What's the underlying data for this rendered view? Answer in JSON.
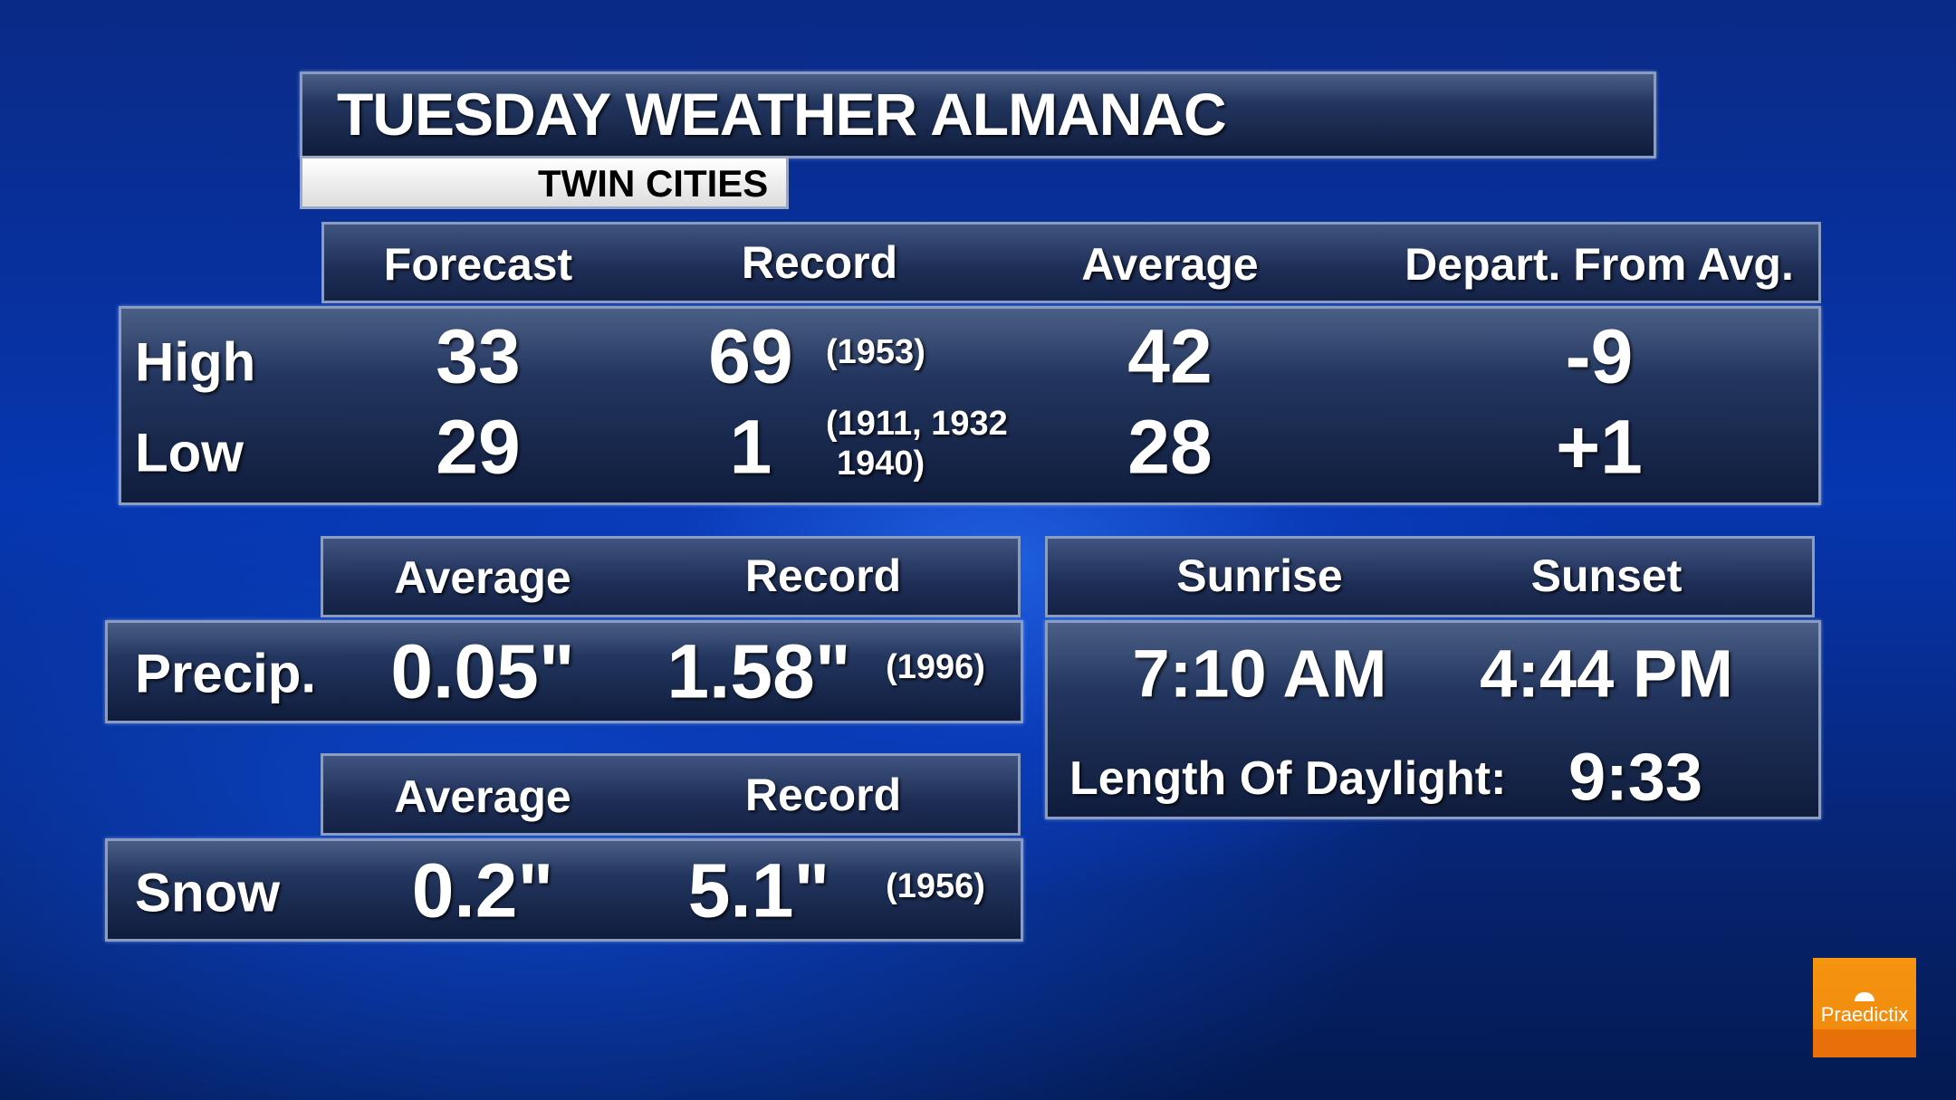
{
  "title": "TUESDAY WEATHER ALMANAC",
  "location": "TWIN CITIES",
  "temps": {
    "headers": [
      "Forecast",
      "Record",
      "Average",
      "Depart. From Avg."
    ],
    "rows": [
      {
        "label": "High",
        "forecast": "33",
        "record": "69",
        "record_year": "(1953)",
        "record_year2": "",
        "average": "42",
        "departure": "-9"
      },
      {
        "label": "Low",
        "forecast": "29",
        "record": "1",
        "record_year": "(1911, 1932",
        "record_year2": "1940)",
        "average": "28",
        "departure": "+1"
      }
    ]
  },
  "precip": {
    "headers": [
      "Average",
      "Record"
    ],
    "label": "Precip.",
    "average": "0.05\"",
    "record": "1.58\"",
    "record_year": "(1996)"
  },
  "snow": {
    "headers": [
      "Average",
      "Record"
    ],
    "label": "Snow",
    "average": "0.2\"",
    "record": "5.1\"",
    "record_year": "(1956)"
  },
  "sun": {
    "headers": [
      "Sunrise",
      "Sunset"
    ],
    "sunrise": "7:10 AM",
    "sunset": "4:44 PM",
    "daylight_label": "Length Of Daylight:",
    "daylight": "9:33"
  },
  "logo": {
    "text": "Praedictix",
    "color": "#f28c0f"
  }
}
